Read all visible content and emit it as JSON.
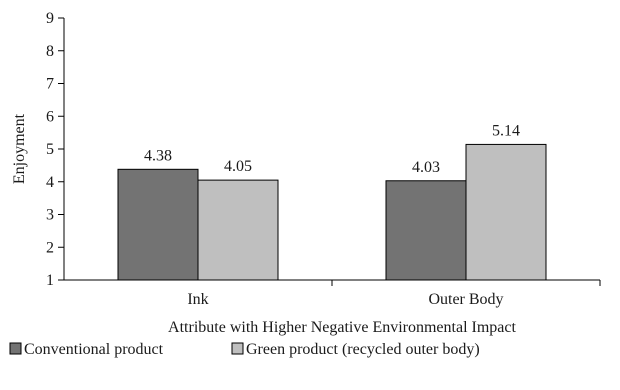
{
  "chart_data": {
    "type": "bar",
    "xlabel": "Attribute with Higher Negative Environmental Impact",
    "ylabel": "Enjoyment",
    "ylim": [
      1,
      9
    ],
    "yticks": [
      1,
      2,
      3,
      4,
      5,
      6,
      7,
      8,
      9
    ],
    "categories": [
      "Ink",
      "Outer Body"
    ],
    "series": [
      {
        "name": "Conventional product",
        "values": [
          4.38,
          4.03
        ],
        "labels": [
          "4.38",
          "4.03"
        ],
        "color": "#737373"
      },
      {
        "name": "Green product (recycled outer body)",
        "values": [
          4.05,
          5.14
        ],
        "labels": [
          "4.05",
          "5.14"
        ],
        "color": "#bfbfbf"
      }
    ],
    "grid": false,
    "legend": "bottom"
  }
}
